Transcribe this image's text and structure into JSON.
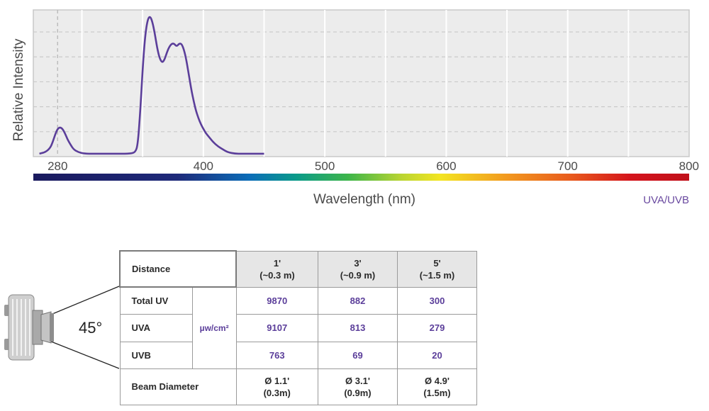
{
  "chart_data": {
    "type": "line",
    "title": "",
    "xlabel": "Wavelength (nm)",
    "ylabel": "Relative Intensity",
    "xlim": [
      260,
      800
    ],
    "x_ticks": [
      280,
      400,
      500,
      600,
      700,
      800
    ],
    "x_tick_labels": [
      "280",
      "400",
      "500",
      "600",
      "700",
      "800"
    ],
    "grid": true,
    "legend_position": "bottom-right",
    "spectrum_bar": true,
    "series": [
      {
        "name": "UVA/UVB",
        "color": "#5b3e9a",
        "x": [
          265,
          270,
          274,
          276,
          278,
          280,
          282,
          284,
          286,
          288,
          290,
          293,
          297,
          302,
          310,
          320,
          330,
          340,
          344,
          346,
          348,
          350,
          352,
          354,
          356,
          358,
          360,
          362,
          364,
          366,
          368,
          370,
          372,
          374,
          376,
          378,
          380,
          382,
          384,
          386,
          388,
          390,
          392,
          394,
          396,
          398,
          400,
          402,
          404,
          406,
          408,
          412,
          416,
          420,
          426,
          432,
          440,
          450
        ],
        "y": [
          0.02,
          0.03,
          0.06,
          0.1,
          0.15,
          0.19,
          0.2,
          0.19,
          0.16,
          0.12,
          0.09,
          0.05,
          0.03,
          0.02,
          0.02,
          0.02,
          0.02,
          0.02,
          0.03,
          0.08,
          0.3,
          0.6,
          0.82,
          0.93,
          0.96,
          0.92,
          0.84,
          0.74,
          0.67,
          0.64,
          0.66,
          0.71,
          0.75,
          0.77,
          0.77,
          0.75,
          0.77,
          0.77,
          0.73,
          0.66,
          0.56,
          0.46,
          0.38,
          0.31,
          0.26,
          0.22,
          0.19,
          0.16,
          0.14,
          0.12,
          0.1,
          0.07,
          0.05,
          0.03,
          0.02,
          0.02,
          0.02,
          0.02
        ]
      }
    ]
  },
  "table": {
    "header": {
      "label": "Distance",
      "columns": [
        [
          "1'",
          "(~0.3 m)"
        ],
        [
          "3'",
          "(~0.9 m)"
        ],
        [
          "5'",
          "(~1.5 m)"
        ]
      ]
    },
    "unit": "µw/cm²",
    "rows": [
      {
        "label": "Total UV",
        "values": [
          "9870",
          "882",
          "300"
        ]
      },
      {
        "label": "UVA",
        "values": [
          "9107",
          "813",
          "279"
        ]
      },
      {
        "label": "UVB",
        "values": [
          "763",
          "69",
          "20"
        ]
      }
    ],
    "beam": {
      "label": "Beam Diameter",
      "values": [
        [
          "Ø 1.1'",
          "(0.3m)"
        ],
        [
          "Ø 3.1'",
          "(0.9m)"
        ],
        [
          "Ø 4.9'",
          "(1.5m)"
        ]
      ]
    }
  },
  "angle": "45°",
  "colors": {
    "line": "#5b3e9a",
    "plot_bg": "#ececec",
    "grid": "#ffffff"
  },
  "fixture_icon": "uv-light-fixture-icon"
}
